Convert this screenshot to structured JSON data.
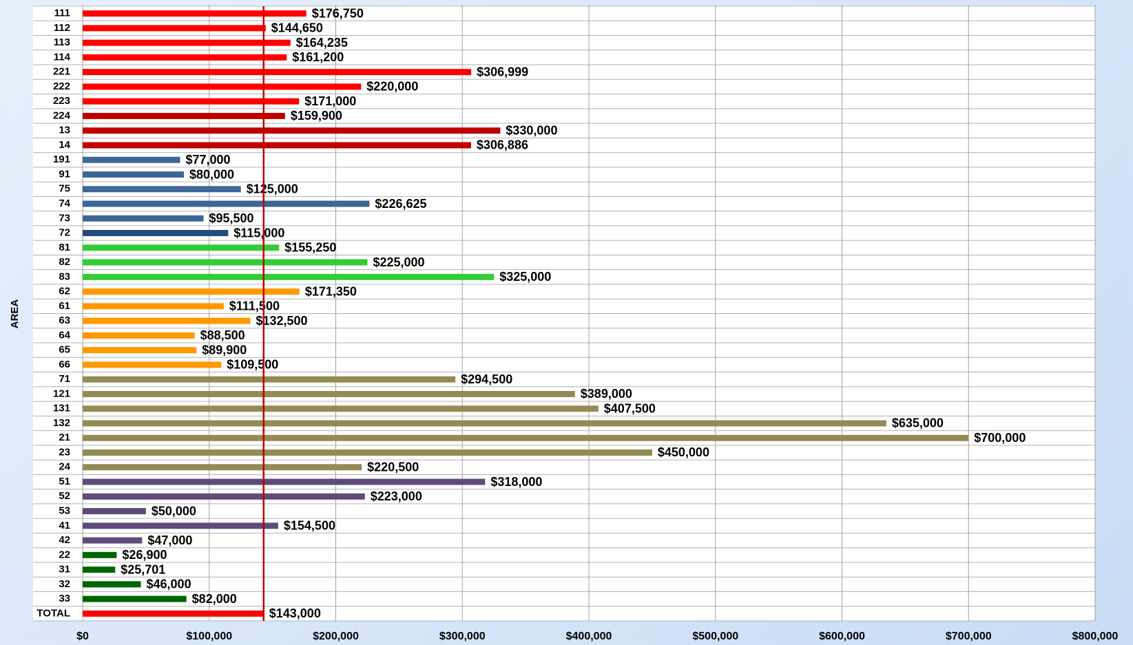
{
  "chart_data": {
    "type": "barh",
    "y_label": "AREA",
    "categories": [
      "111",
      "112",
      "113",
      "114",
      "221",
      "222",
      "223",
      "224",
      "13",
      "14",
      "191",
      "91",
      "75",
      "74",
      "73",
      "72",
      "81",
      "82",
      "83",
      "62",
      "61",
      "63",
      "64",
      "65",
      "66",
      "71",
      "121",
      "131",
      "132",
      "21",
      "23",
      "24",
      "51",
      "52",
      "53",
      "41",
      "42",
      "22",
      "31",
      "32",
      "33",
      "TOTAL"
    ],
    "values": [
      176750,
      144650,
      164235,
      161200,
      306999,
      220000,
      171000,
      159900,
      330000,
      306886,
      77000,
      80000,
      125000,
      226625,
      95500,
      115000,
      155250,
      225000,
      325000,
      171350,
      111500,
      132500,
      88500,
      89900,
      109500,
      294500,
      389000,
      407500,
      635000,
      700000,
      450000,
      220500,
      318000,
      223000,
      50000,
      154500,
      47000,
      26900,
      25701,
      46000,
      82000,
      143000
    ],
    "value_labels": [
      "$176,750",
      "$144,650",
      "$164,235",
      "$161,200",
      "$306,999",
      "$220,000",
      "$171,000",
      "$159,900",
      "$330,000",
      "$306,886",
      "$77,000",
      "$80,000",
      "$125,000",
      "$226,625",
      "$95,500",
      "$115,000",
      "$155,250",
      "$225,000",
      "$325,000",
      "$171,350",
      "$111,500",
      "$132,500",
      "$88,500",
      "$89,900",
      "$109,500",
      "$294,500",
      "$389,000",
      "$407,500",
      "$635,000",
      "$700,000",
      "$450,000",
      "$220,500",
      "$318,000",
      "$223,000",
      "$50,000",
      "$154,500",
      "$47,000",
      "$26,900",
      "$25,701",
      "$46,000",
      "$82,000",
      "$143,000"
    ],
    "colors": [
      "#ff0000",
      "#ff0000",
      "#ff0000",
      "#ff0000",
      "#ff0000",
      "#ff0000",
      "#ff0000",
      "#c00000",
      "#c00000",
      "#c00000",
      "#3d6699",
      "#3d6699",
      "#3d6699",
      "#3d6699",
      "#3d6699",
      "#254a7a",
      "#33cc33",
      "#33cc33",
      "#33cc33",
      "#ff9900",
      "#ff9900",
      "#ff9900",
      "#ff9900",
      "#ff9900",
      "#ff9900",
      "#948a54",
      "#948a54",
      "#948a54",
      "#948a54",
      "#948a54",
      "#948a54",
      "#948a54",
      "#604a7b",
      "#604a7b",
      "#604a7b",
      "#604a7b",
      "#604a7b",
      "#006600",
      "#006600",
      "#006600",
      "#006600",
      "#ff0000"
    ],
    "xlim": [
      0,
      800000
    ],
    "xticks": [
      {
        "value": 0,
        "label": "$0"
      },
      {
        "value": 100000,
        "label": "$100,000"
      },
      {
        "value": 200000,
        "label": "$200,000"
      },
      {
        "value": 300000,
        "label": "$300,000"
      },
      {
        "value": 400000,
        "label": "$400,000"
      },
      {
        "value": 500000,
        "label": "$500,000"
      },
      {
        "value": 600000,
        "label": "$600,000"
      },
      {
        "value": 700000,
        "label": "$700,000"
      },
      {
        "value": 800000,
        "label": "$800,000"
      }
    ],
    "grid": true,
    "reference_line": {
      "value": 143000,
      "color": "#c00000"
    }
  }
}
